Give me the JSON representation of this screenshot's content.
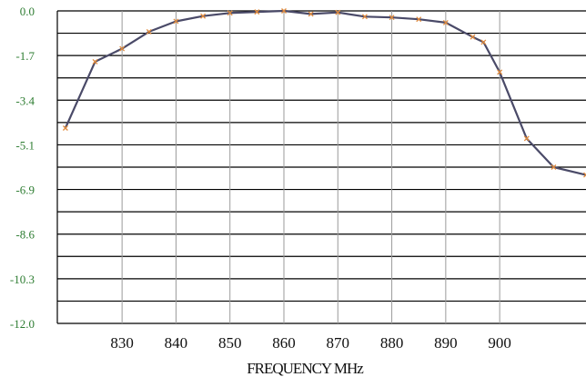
{
  "chart_data": {
    "type": "line",
    "title": "",
    "xlabel": "FREQUENCY MHz",
    "ylabel": "",
    "xlim": [
      818,
      916
    ],
    "ylim": [
      -12.0,
      0.0
    ],
    "y_ticks": [
      "0.0",
      "-1.7",
      "-3.4",
      "-5.1",
      "-6.9",
      "-8.6",
      "-10.3",
      "-12.0"
    ],
    "x_ticks": [
      "830",
      "840",
      "850",
      "860",
      "870",
      "880",
      "890",
      "900"
    ],
    "x_tick_values": [
      830,
      840,
      850,
      860,
      870,
      880,
      890,
      900
    ],
    "grid": true,
    "legend": "none",
    "line_color": "#4a4a68",
    "marker_color": "#e08a3c",
    "series": [
      {
        "x": [
          819.5,
          825,
          830,
          835,
          840,
          845,
          850,
          855,
          860,
          865,
          870,
          875,
          880,
          885,
          890,
          895,
          897,
          900,
          905,
          910,
          916
        ],
        "y": [
          -4.5,
          -1.95,
          -1.45,
          -0.8,
          -0.4,
          -0.2,
          -0.08,
          -0.04,
          0.0,
          -0.12,
          -0.06,
          -0.22,
          -0.25,
          -0.32,
          -0.45,
          -1.0,
          -1.2,
          -2.35,
          -4.9,
          -6.0,
          -6.3
        ]
      }
    ]
  }
}
